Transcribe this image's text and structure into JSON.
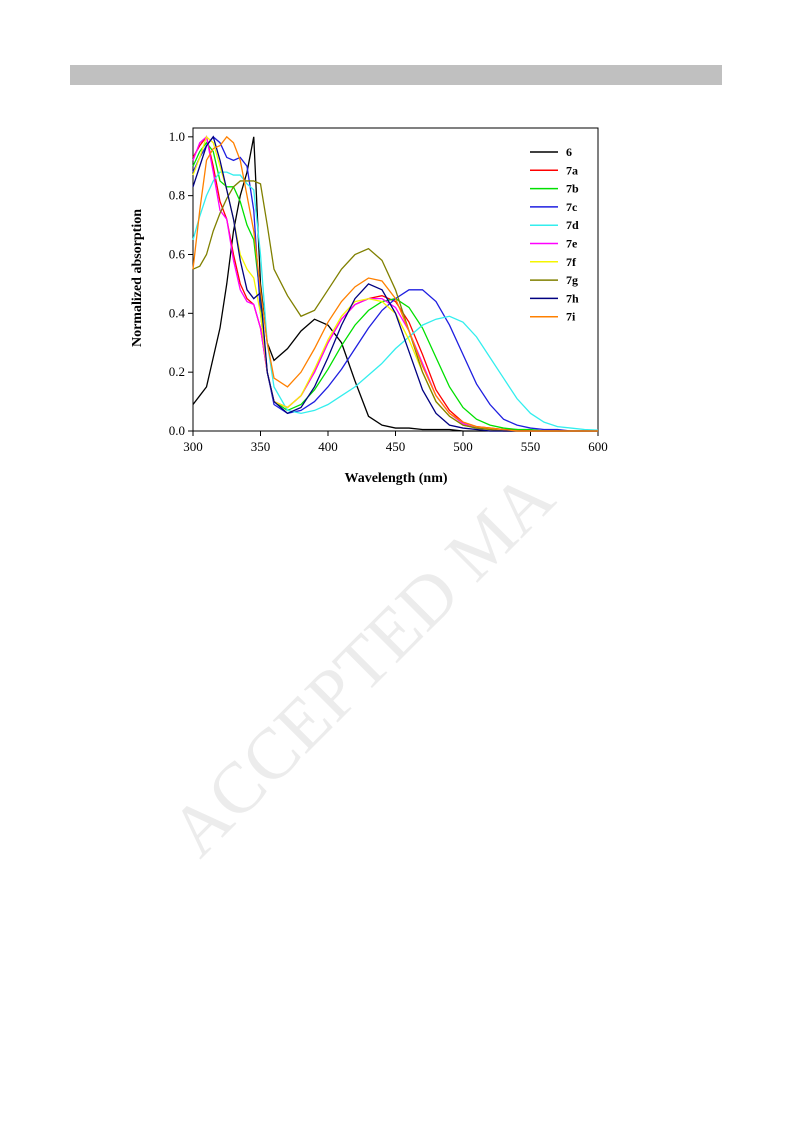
{
  "watermark": "ACCEPTED MA",
  "chart_data": {
    "type": "line",
    "x_label": "Wavelength (nm)",
    "y_label": "Normalized absorption",
    "xlim": [
      300,
      600
    ],
    "ylim": [
      0,
      1.03
    ],
    "xticks": [
      300,
      350,
      400,
      450,
      500,
      550,
      600
    ],
    "yticks": [
      {
        "value": 0,
        "label": "0.0"
      },
      {
        "value": 0.2,
        "label": "0.2"
      },
      {
        "value": 0.4,
        "label": "0.4"
      },
      {
        "value": 0.6,
        "label": "0.6"
      },
      {
        "value": 0.8,
        "label": "0.8"
      },
      {
        "value": 1,
        "label": "1.0"
      }
    ],
    "legend": "upper right",
    "x": [
      300,
      305,
      310,
      315,
      320,
      325,
      330,
      335,
      340,
      345,
      350,
      355,
      360,
      370,
      380,
      390,
      400,
      410,
      420,
      430,
      440,
      450,
      460,
      470,
      480,
      490,
      500,
      510,
      520,
      530,
      540,
      550,
      560,
      570,
      580,
      590,
      600
    ],
    "series": [
      {
        "name": "6",
        "color": "#000000",
        "values": [
          0.09,
          0.12,
          0.15,
          0.25,
          0.35,
          0.5,
          0.68,
          0.8,
          0.88,
          1.0,
          0.5,
          0.3,
          0.24,
          0.28,
          0.34,
          0.38,
          0.36,
          0.3,
          0.17,
          0.05,
          0.02,
          0.01,
          0.01,
          0.005,
          0.005,
          0.005,
          0,
          0,
          0,
          0,
          0,
          0,
          0,
          0,
          0,
          0,
          0
        ]
      },
      {
        "name": "7a",
        "color": "#ff0000",
        "values": [
          0.93,
          0.97,
          1.0,
          0.9,
          0.78,
          0.72,
          0.6,
          0.5,
          0.45,
          0.43,
          0.35,
          0.2,
          0.1,
          0.08,
          0.12,
          0.2,
          0.3,
          0.38,
          0.43,
          0.45,
          0.46,
          0.44,
          0.37,
          0.26,
          0.14,
          0.07,
          0.03,
          0.015,
          0.01,
          0.005,
          0.005,
          0,
          0,
          0,
          0,
          0,
          0
        ]
      },
      {
        "name": "7b",
        "color": "#00e000",
        "values": [
          0.9,
          0.95,
          0.98,
          0.95,
          0.85,
          0.83,
          0.83,
          0.78,
          0.7,
          0.65,
          0.45,
          0.2,
          0.1,
          0.07,
          0.09,
          0.14,
          0.21,
          0.29,
          0.36,
          0.41,
          0.44,
          0.45,
          0.42,
          0.35,
          0.25,
          0.15,
          0.08,
          0.04,
          0.02,
          0.01,
          0.005,
          0.005,
          0,
          0,
          0,
          0,
          0
        ]
      },
      {
        "name": "7c",
        "color": "#1f1fe0",
        "values": [
          0.88,
          0.93,
          0.97,
          1.0,
          0.98,
          0.93,
          0.92,
          0.93,
          0.9,
          0.75,
          0.4,
          0.2,
          0.09,
          0.06,
          0.07,
          0.1,
          0.15,
          0.21,
          0.28,
          0.35,
          0.41,
          0.45,
          0.48,
          0.48,
          0.44,
          0.36,
          0.26,
          0.16,
          0.09,
          0.04,
          0.02,
          0.01,
          0.005,
          0.005,
          0,
          0,
          0
        ]
      },
      {
        "name": "7d",
        "color": "#33eeee",
        "values": [
          0.65,
          0.73,
          0.8,
          0.85,
          0.88,
          0.88,
          0.87,
          0.87,
          0.84,
          0.82,
          0.6,
          0.3,
          0.15,
          0.07,
          0.06,
          0.07,
          0.09,
          0.12,
          0.15,
          0.19,
          0.23,
          0.28,
          0.32,
          0.36,
          0.38,
          0.39,
          0.37,
          0.32,
          0.25,
          0.18,
          0.11,
          0.06,
          0.03,
          0.015,
          0.01,
          0.005,
          0.003
        ]
      },
      {
        "name": "7e",
        "color": "#ff00ff",
        "values": [
          0.92,
          0.98,
          1.0,
          0.88,
          0.75,
          0.72,
          0.58,
          0.48,
          0.44,
          0.43,
          0.35,
          0.2,
          0.1,
          0.08,
          0.12,
          0.2,
          0.3,
          0.38,
          0.43,
          0.45,
          0.45,
          0.42,
          0.34,
          0.23,
          0.12,
          0.06,
          0.025,
          0.01,
          0.005,
          0,
          0,
          0,
          0,
          0,
          0,
          0,
          0
        ]
      },
      {
        "name": "7f",
        "color": "#f5f500",
        "values": [
          0.87,
          0.93,
          1.0,
          0.98,
          0.9,
          0.82,
          0.72,
          0.6,
          0.55,
          0.52,
          0.4,
          0.2,
          0.1,
          0.08,
          0.12,
          0.21,
          0.31,
          0.39,
          0.44,
          0.45,
          0.44,
          0.4,
          0.31,
          0.2,
          0.1,
          0.05,
          0.02,
          0.01,
          0.005,
          0,
          0,
          0,
          0,
          0,
          0,
          0,
          0
        ]
      },
      {
        "name": "7g",
        "color": "#808000",
        "values": [
          0.55,
          0.56,
          0.6,
          0.68,
          0.74,
          0.79,
          0.83,
          0.85,
          0.85,
          0.85,
          0.84,
          0.7,
          0.55,
          0.46,
          0.39,
          0.41,
          0.48,
          0.55,
          0.6,
          0.62,
          0.58,
          0.48,
          0.34,
          0.2,
          0.1,
          0.05,
          0.02,
          0.01,
          0.005,
          0,
          0,
          0,
          0,
          0,
          0,
          0,
          0
        ]
      },
      {
        "name": "7h",
        "color": "#000080",
        "values": [
          0.83,
          0.9,
          0.97,
          1.0,
          0.92,
          0.82,
          0.72,
          0.58,
          0.48,
          0.45,
          0.47,
          0.2,
          0.1,
          0.06,
          0.08,
          0.15,
          0.25,
          0.36,
          0.45,
          0.5,
          0.48,
          0.4,
          0.27,
          0.14,
          0.06,
          0.02,
          0.01,
          0.005,
          0,
          0,
          0,
          0,
          0,
          0,
          0,
          0,
          0
        ]
      },
      {
        "name": "7i",
        "color": "#ff8000",
        "values": [
          0.55,
          0.75,
          0.92,
          0.96,
          0.97,
          1.0,
          0.98,
          0.92,
          0.8,
          0.68,
          0.48,
          0.3,
          0.18,
          0.15,
          0.2,
          0.28,
          0.37,
          0.44,
          0.49,
          0.52,
          0.51,
          0.45,
          0.34,
          0.22,
          0.12,
          0.06,
          0.03,
          0.015,
          0.01,
          0.005,
          0,
          0,
          0,
          0,
          0,
          0,
          0
        ]
      }
    ]
  }
}
